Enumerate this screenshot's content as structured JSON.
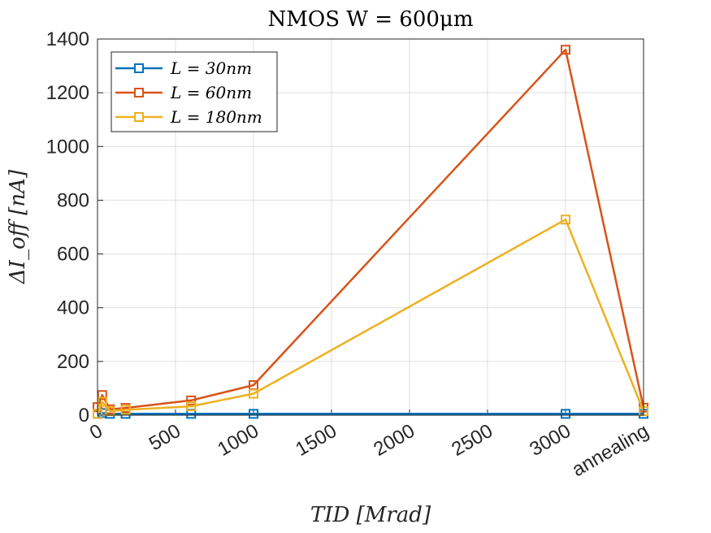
{
  "chart_data": {
    "type": "line",
    "title": "NMOS W = 600μm",
    "xlabel": "TID [Mrad]",
    "ylabel": "ΔI_off [nA]",
    "x_ticks": [
      "0",
      "500",
      "1000",
      "1500",
      "2000",
      "2500",
      "3000",
      "annealing"
    ],
    "x_tick_values": [
      0,
      500,
      1000,
      1500,
      2000,
      2500,
      3000,
      3500
    ],
    "y_ticks": [
      "0",
      "200",
      "400",
      "600",
      "800",
      "1000",
      "1200",
      "1400"
    ],
    "xlim": [
      0,
      3500
    ],
    "ylim": [
      0,
      1400
    ],
    "grid": true,
    "legend_position": "top-left",
    "x": [
      0,
      30,
      80,
      180,
      600,
      1000,
      3000,
      3500
    ],
    "series": [
      {
        "name": "L = 30nm",
        "color": "#0072BD",
        "marker": "square",
        "values": [
          5,
          8,
          5,
          5,
          5,
          5,
          5,
          5
        ]
      },
      {
        "name": "L = 60nm",
        "color": "#D95319",
        "marker": "square",
        "values": [
          30,
          75,
          22,
          27,
          55,
          112,
          1360,
          28
        ]
      },
      {
        "name": "L = 180nm",
        "color": "#EDB120",
        "marker": "square",
        "values": [
          5,
          50,
          15,
          20,
          33,
          80,
          728,
          15
        ]
      }
    ]
  }
}
